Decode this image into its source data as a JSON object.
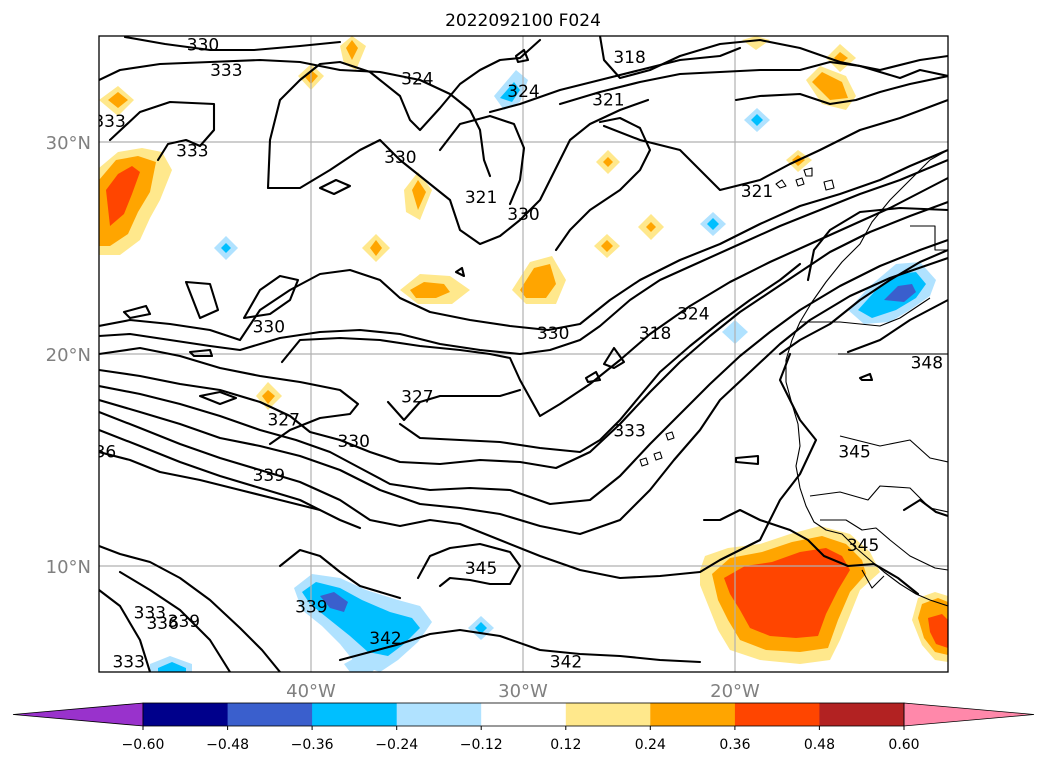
{
  "title": "2022092100 F024",
  "map": {
    "lat_labels": [
      {
        "text": "30°N",
        "lat": 30
      },
      {
        "text": "20°N",
        "lat": 20
      },
      {
        "text": "10°N",
        "lat": 10
      }
    ],
    "lon_labels": [
      {
        "text": "40°W",
        "lon": -40
      },
      {
        "text": "30°W",
        "lon": -30
      },
      {
        "text": "20°W",
        "lon": -20
      }
    ],
    "contour_labels": [
      {
        "text": "330",
        "lat": 34.6,
        "lon": -45.1
      },
      {
        "text": "333",
        "lat": 33.4,
        "lon": -44.0
      },
      {
        "text": "324",
        "lat": 33.0,
        "lon": -35.0
      },
      {
        "text": "324",
        "lat": 32.4,
        "lon": -30.0
      },
      {
        "text": "318",
        "lat": 34.0,
        "lon": -25.0
      },
      {
        "text": "321",
        "lat": 32.0,
        "lon": -26.0
      },
      {
        "text": "333",
        "lat": 31.0,
        "lon": -49.5
      },
      {
        "text": "333",
        "lat": 29.6,
        "lon": -45.6
      },
      {
        "text": "330",
        "lat": 29.3,
        "lon": -35.8
      },
      {
        "text": "321",
        "lat": 27.4,
        "lon": -32.0
      },
      {
        "text": "330",
        "lat": 26.6,
        "lon": -30.0
      },
      {
        "text": "321",
        "lat": 27.7,
        "lon": -19.0
      },
      {
        "text": "330",
        "lat": 21.3,
        "lon": -42.0
      },
      {
        "text": "330",
        "lat": 21.0,
        "lon": -28.6
      },
      {
        "text": "318",
        "lat": 21.0,
        "lon": -23.8
      },
      {
        "text": "324",
        "lat": 21.9,
        "lon": -22.0
      },
      {
        "text": "348",
        "lat": 19.6,
        "lon": -11.0
      },
      {
        "text": "327",
        "lat": 18.0,
        "lon": -35.0
      },
      {
        "text": "327",
        "lat": 16.9,
        "lon": -41.3
      },
      {
        "text": "330",
        "lat": 15.9,
        "lon": -38.0
      },
      {
        "text": "333",
        "lat": 16.4,
        "lon": -25.0
      },
      {
        "text": "345",
        "lat": 15.4,
        "lon": -14.4
      },
      {
        "text": "339",
        "lat": 14.3,
        "lon": -42.0
      },
      {
        "text": "36",
        "lat": 15.4,
        "lon": -49.7
      },
      {
        "text": "345",
        "lat": 9.9,
        "lon": -32.0
      },
      {
        "text": "345",
        "lat": 11.0,
        "lon": -14.0
      },
      {
        "text": "339",
        "lat": 8.1,
        "lon": -40.0
      },
      {
        "text": "333",
        "lat": 7.8,
        "lon": -47.6
      },
      {
        "text": "336",
        "lat": 7.3,
        "lon": -47.0
      },
      {
        "text": "339",
        "lat": 7.4,
        "lon": -46.0
      },
      {
        "text": "342",
        "lat": 6.6,
        "lon": -36.5
      },
      {
        "text": "342",
        "lat": 5.5,
        "lon": -28.0
      },
      {
        "text": "333",
        "lat": 5.5,
        "lon": -48.6
      }
    ]
  },
  "colorbar": {
    "levels": [
      -0.6,
      -0.48,
      -0.36,
      -0.24,
      -0.12,
      0.12,
      0.24,
      0.36,
      0.48,
      0.6
    ],
    "tick_labels": [
      "−0.60",
      "−0.48",
      "−0.36",
      "−0.24",
      "−0.12",
      "0.12",
      "0.24",
      "0.36",
      "0.48",
      "0.60"
    ],
    "colors": [
      "#9932cc",
      "#00008b",
      "#3a5fcd",
      "#00bfff",
      "#b0e2ff",
      "#ffffff",
      "#ffe88c",
      "#ffa500",
      "#ff4500",
      "#b22222",
      "#ff88aa"
    ]
  }
}
